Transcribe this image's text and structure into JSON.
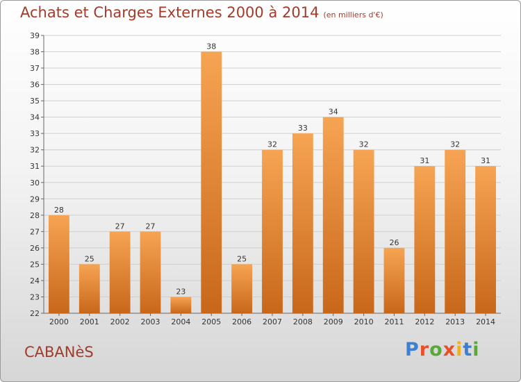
{
  "header": {
    "title": "Achats et Charges Externes 2000 à 2014",
    "subtitle": "(en milliers d'€)"
  },
  "footer": {
    "commune": "CABANèS",
    "brand": [
      "P",
      "r",
      "o",
      "x",
      "i",
      "t",
      "i"
    ],
    "brand_colors": [
      "#3d7fd0",
      "#e8502a",
      "#5aa83a",
      "#e8502a",
      "#f0b020",
      "#3d7fd0",
      "#5aa83a"
    ]
  },
  "colors": {
    "bar_top": "#f6a453",
    "bar_bottom": "#c8671a",
    "grid": "#cfcfcf",
    "title": "#a33b2a"
  },
  "chart_data": {
    "type": "bar",
    "categories": [
      "2000",
      "2001",
      "2002",
      "2003",
      "2004",
      "2005",
      "2006",
      "2007",
      "2008",
      "2009",
      "2010",
      "2011",
      "2012",
      "2013",
      "2014"
    ],
    "values": [
      28,
      25,
      27,
      27,
      23,
      38,
      25,
      32,
      33,
      34,
      32,
      26,
      31,
      32,
      31
    ],
    "title": "Achats et Charges Externes 2000 à 2014",
    "subtitle": "(en milliers d'€)",
    "ylim": [
      22,
      39
    ],
    "yticks": [
      22,
      23,
      24,
      25,
      26,
      27,
      28,
      29,
      30,
      31,
      32,
      33,
      34,
      35,
      36,
      37,
      38,
      39
    ],
    "grid": true
  }
}
